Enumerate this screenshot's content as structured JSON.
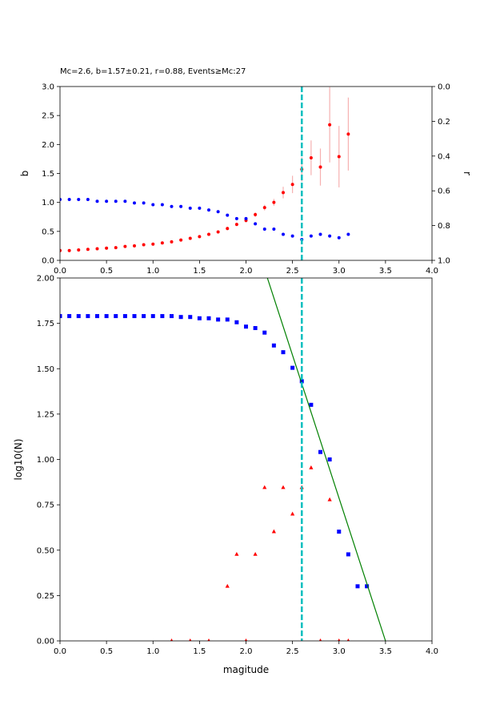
{
  "chart_data": [
    {
      "type": "scatter",
      "title": "Mc=2.6, b=1.57±0.21, r=0.88, Events≥Mc:27",
      "ylabel": "b",
      "y2label": "r",
      "xlim": [
        0,
        4
      ],
      "xticks": [
        {
          "value": 0,
          "label": "0.0"
        },
        {
          "value": 0.5,
          "label": "0.5"
        },
        {
          "value": 1,
          "label": "1.0"
        },
        {
          "value": 1.5,
          "label": "1.5"
        },
        {
          "value": 2,
          "label": "2.0"
        },
        {
          "value": 2.5,
          "label": "2.5"
        },
        {
          "value": 3,
          "label": "3.0"
        },
        {
          "value": 3.5,
          "label": "3.5"
        },
        {
          "value": 4,
          "label": "4.0"
        }
      ],
      "ylim": [
        0,
        3
      ],
      "yticks": [
        {
          "value": 0,
          "label": "0.0"
        },
        {
          "value": 0.5,
          "label": "0.5"
        },
        {
          "value": 1,
          "label": "1.0"
        },
        {
          "value": 1.5,
          "label": "1.5"
        },
        {
          "value": 2,
          "label": "2.0"
        },
        {
          "value": 2.5,
          "label": "2.5"
        },
        {
          "value": 3,
          "label": "3.0"
        }
      ],
      "y2lim": [
        0,
        1
      ],
      "y2_inverted": true,
      "y2ticks": [
        {
          "value": 0,
          "label": "0.0"
        },
        {
          "value": 0.2,
          "label": "0.2"
        },
        {
          "value": 0.4,
          "label": "0.4"
        },
        {
          "value": 0.6,
          "label": "0.6"
        },
        {
          "value": 0.8,
          "label": "0.8"
        },
        {
          "value": 1,
          "label": "1.0"
        }
      ],
      "vline": {
        "x": 2.6,
        "color": "#00bfbf"
      },
      "series": [
        {
          "color": "#ff0000",
          "marker": "circle",
          "error_color": "#f6b0b0",
          "x": [
            0,
            0.1,
            0.2,
            0.3,
            0.4,
            0.5,
            0.6,
            0.7,
            0.8,
            0.9,
            1,
            1.1,
            1.2,
            1.3,
            1.4,
            1.5,
            1.6,
            1.7,
            1.8,
            1.9,
            2,
            2.1,
            2.2,
            2.3,
            2.4,
            2.5,
            2.6,
            2.7,
            2.8,
            2.9,
            3,
            3.1
          ],
          "values": [
            0.17,
            0.17,
            0.18,
            0.19,
            0.2,
            0.21,
            0.22,
            0.24,
            0.25,
            0.27,
            0.28,
            0.3,
            0.32,
            0.35,
            0.38,
            0.41,
            0.45,
            0.49,
            0.55,
            0.62,
            0.69,
            0.79,
            0.91,
            1.0,
            1.17,
            1.31,
            1.57,
            1.77,
            1.61,
            2.34,
            1.79,
            2.18
          ],
          "errors": [
            0.01,
            0.01,
            0.01,
            0.01,
            0.01,
            0.01,
            0.01,
            0.01,
            0.01,
            0.01,
            0.01,
            0.01,
            0.01,
            0.01,
            0.02,
            0.02,
            0.02,
            0.02,
            0.03,
            0.03,
            0.04,
            0.04,
            0.05,
            0.06,
            0.1,
            0.15,
            0.21,
            0.3,
            0.32,
            0.65,
            0.53,
            0.63
          ]
        },
        {
          "color": "#0000ff",
          "marker": "circle",
          "axis": "y2",
          "x": [
            0,
            0.1,
            0.2,
            0.3,
            0.4,
            0.5,
            0.6,
            0.7,
            0.8,
            0.9,
            1,
            1.1,
            1.2,
            1.3,
            1.4,
            1.5,
            1.6,
            1.7,
            1.8,
            1.9,
            2,
            2.1,
            2.2,
            2.3,
            2.4,
            2.5,
            2.6,
            2.7,
            2.8,
            2.9,
            3,
            3.1
          ],
          "values": [
            0.65,
            0.65,
            0.65,
            0.65,
            0.66,
            0.66,
            0.66,
            0.66,
            0.67,
            0.67,
            0.68,
            0.68,
            0.69,
            0.69,
            0.7,
            0.7,
            0.71,
            0.72,
            0.74,
            0.76,
            0.76,
            0.79,
            0.82,
            0.82,
            0.85,
            0.86,
            0.88,
            0.86,
            0.85,
            0.86,
            0.87,
            0.85
          ]
        }
      ]
    },
    {
      "type": "scatter",
      "xlabel": "magitude",
      "ylabel": "log10(N)",
      "xlim": [
        0,
        4
      ],
      "xticks": [
        {
          "value": 0,
          "label": "0.0"
        },
        {
          "value": 0.5,
          "label": "0.5"
        },
        {
          "value": 1,
          "label": "1.0"
        },
        {
          "value": 1.5,
          "label": "1.5"
        },
        {
          "value": 2,
          "label": "2.0"
        },
        {
          "value": 2.5,
          "label": "2.5"
        },
        {
          "value": 3,
          "label": "3.0"
        },
        {
          "value": 3.5,
          "label": "3.5"
        },
        {
          "value": 4,
          "label": "4.0"
        }
      ],
      "ylim": [
        0,
        2
      ],
      "yticks": [
        {
          "value": 0,
          "label": "0.00"
        },
        {
          "value": 0.25,
          "label": "0.25"
        },
        {
          "value": 0.5,
          "label": "0.50"
        },
        {
          "value": 0.75,
          "label": "0.75"
        },
        {
          "value": 1,
          "label": "1.00"
        },
        {
          "value": 1.25,
          "label": "1.25"
        },
        {
          "value": 1.5,
          "label": "1.50"
        },
        {
          "value": 1.75,
          "label": "1.75"
        },
        {
          "value": 2,
          "label": "2.00"
        }
      ],
      "vline": {
        "x": 2.6,
        "color": "#00bfbf"
      },
      "series": [
        {
          "color": "#0000ff",
          "marker": "square",
          "x": [
            0,
            0.1,
            0.2,
            0.3,
            0.4,
            0.5,
            0.6,
            0.7,
            0.8,
            0.9,
            1,
            1.1,
            1.2,
            1.3,
            1.4,
            1.5,
            1.6,
            1.7,
            1.8,
            1.9,
            2,
            2.1,
            2.2,
            2.3,
            2.4,
            2.5,
            2.6,
            2.7,
            2.8,
            2.9,
            3,
            3.1,
            3.2,
            3.3
          ],
          "values": [
            1.79,
            1.79,
            1.79,
            1.79,
            1.79,
            1.79,
            1.79,
            1.79,
            1.79,
            1.79,
            1.79,
            1.79,
            1.79,
            1.785,
            1.785,
            1.778,
            1.778,
            1.771,
            1.771,
            1.756,
            1.732,
            1.724,
            1.699,
            1.628,
            1.591,
            1.505,
            1.431,
            1.301,
            1.041,
            1.0,
            0.602,
            0.477,
            0.301,
            0.301
          ]
        },
        {
          "color": "#ff0000",
          "marker": "triangle",
          "x": [
            1.2,
            1.4,
            1.6,
            1.8,
            1.9,
            2,
            2.1,
            2.2,
            2.3,
            2.4,
            2.5,
            2.6,
            2.7,
            2.8,
            2.9,
            3,
            3.1
          ],
          "values": [
            0,
            0,
            0,
            0.301,
            0.477,
            0,
            0.477,
            0.845,
            0.602,
            0.845,
            0.699,
            0.845,
            0.954,
            0,
            0.778,
            0,
            0
          ]
        },
        {
          "color": "#008000",
          "marker": "line",
          "x": [
            2.23,
            3.5
          ],
          "values": [
            2.0,
            0
          ]
        }
      ]
    }
  ]
}
